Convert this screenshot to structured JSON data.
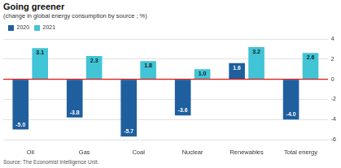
{
  "chart_data": {
    "type": "bar",
    "title": "Going greener",
    "subtitle": "(change in global energy consumption by source ; %)",
    "source": "Source: The Economist Intelligence Unit.",
    "categories": [
      "Oil",
      "Gas",
      "Coal",
      "Nuclear",
      "Renewables",
      "Total energy"
    ],
    "series": [
      {
        "name": "2020",
        "color": "#1f5f9e",
        "values": [
          -5.0,
          -3.8,
          -5.7,
          -3.6,
          1.6,
          -4.0
        ],
        "value_labels": [
          "-5.0",
          "-3.8",
          "-5.7",
          "-3.6",
          "1.6",
          "-4.0"
        ]
      },
      {
        "name": "2021",
        "color": "#40c4d6",
        "values": [
          3.1,
          2.3,
          1.8,
          1.0,
          3.2,
          2.6
        ],
        "value_labels": [
          "3.1",
          "2.3",
          "1.8",
          "1.0",
          "3.2",
          "2.6"
        ]
      }
    ],
    "ylim": [
      -6,
      4
    ],
    "yticks": [
      -6,
      -4,
      -2,
      0,
      2,
      4
    ],
    "grid": true,
    "legend": "top-left",
    "data_labels": true
  }
}
